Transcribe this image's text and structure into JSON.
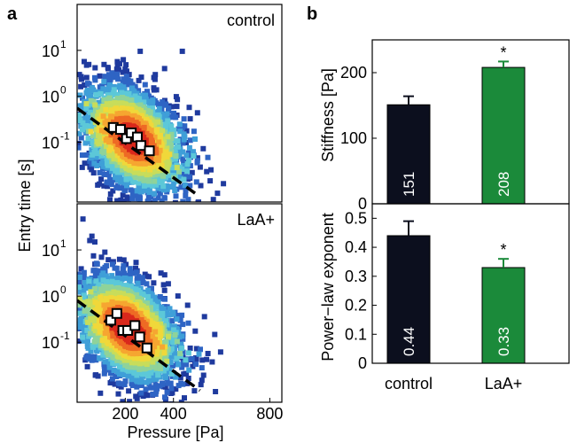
{
  "chart_data": [
    {
      "type": "scatter",
      "panel_label": "a",
      "subplots": [
        {
          "label": "control",
          "scale": {
            "x": "linear",
            "y": "log"
          },
          "xlim": [
            0,
            850
          ],
          "ylim": [
            0.005,
            100
          ],
          "yticks": [
            {
              "v": 10,
              "t": "10"
            },
            {
              "v": 1,
              "t": "10"
            },
            {
              "v": 0.1,
              "t": "10"
            }
          ],
          "ytick_exp": [
            "1",
            "0",
            "-1"
          ],
          "density_center": [
            230,
            0.12
          ],
          "binned_means": [
            [
              150,
              0.21
            ],
            [
              180,
              0.19
            ],
            [
              205,
              0.12
            ],
            [
              225,
              0.16
            ],
            [
              250,
              0.13
            ],
            [
              265,
              0.085
            ],
            [
              300,
              0.065
            ]
          ],
          "fit_line": {
            "x": [
              0,
              510
            ],
            "y": [
              0.55,
              0.0065
            ]
          }
        },
        {
          "label": "LaA+",
          "scale": {
            "x": "linear",
            "y": "log"
          },
          "xlim": [
            0,
            850
          ],
          "ylim": [
            0.005,
            100
          ],
          "yticks": [
            {
              "v": 10,
              "t": "10"
            },
            {
              "v": 1,
              "t": "10"
            },
            {
              "v": 0.1,
              "t": "10"
            }
          ],
          "ytick_exp": [
            "1",
            "0",
            "-1"
          ],
          "density_center": [
            210,
            0.2
          ],
          "binned_means": [
            [
              140,
              0.3
            ],
            [
              165,
              0.42
            ],
            [
              190,
              0.18
            ],
            [
              210,
              0.18
            ],
            [
              240,
              0.23
            ],
            [
              260,
              0.13
            ],
            [
              290,
              0.075
            ]
          ],
          "fit_line": {
            "x": [
              0,
              510
            ],
            "y": [
              0.8,
              0.009
            ]
          }
        }
      ],
      "xlabel": "Pressure [Pa]",
      "ylabel": "Entry time [s]",
      "xticks": [
        200,
        400,
        800
      ]
    },
    {
      "type": "bar",
      "panel_label": "b",
      "categories": [
        "control",
        "LaA+"
      ],
      "subplots": [
        {
          "ylabel": "Stiffness [Pa]",
          "ylim": [
            0,
            250
          ],
          "yticks": [
            0,
            100,
            200
          ],
          "values": [
            151,
            208
          ],
          "errors": [
            13,
            9
          ],
          "value_labels": [
            "151",
            "208"
          ],
          "significance": [
            "",
            "*"
          ],
          "colors": [
            "#0c0f1e",
            "#1b8a3a"
          ]
        },
        {
          "ylabel": "Power−law exponent",
          "ylim": [
            0,
            0.55
          ],
          "yticks": [
            0,
            0.1,
            0.2,
            0.3,
            0.4,
            0.5
          ],
          "values": [
            0.44,
            0.33
          ],
          "errors": [
            0.05,
            0.03
          ],
          "value_labels": [
            "0.44",
            "0.33"
          ],
          "significance": [
            "",
            "*"
          ],
          "colors": [
            "#0c0f1e",
            "#1b8a3a"
          ]
        }
      ]
    }
  ]
}
